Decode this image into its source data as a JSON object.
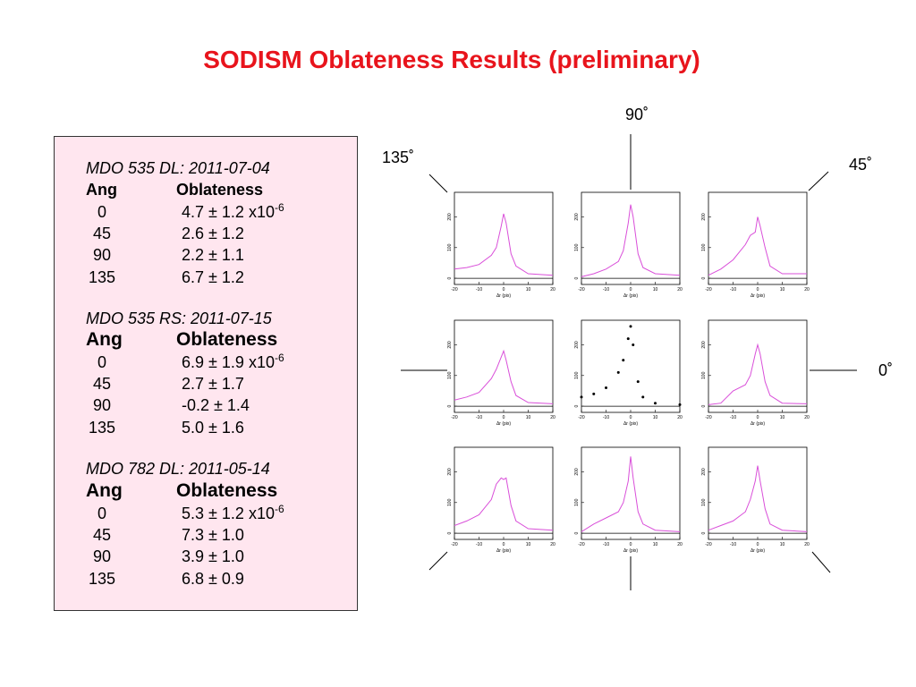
{
  "title": "SODISM Oblateness Results (preliminary)",
  "panel": {
    "blocks": [
      {
        "heading": "MDO 535 DL: 2011-07-04",
        "col_headers": [
          "Ang",
          "Oblateness"
        ],
        "rows": [
          {
            "ang": "0",
            "value": "4.7 ± 1.2",
            "unit": "x10",
            "exp": "-6"
          },
          {
            "ang": "45",
            "value": "2.6 ± 1.2"
          },
          {
            "ang": "90",
            "value": "2.2 ± 1.1"
          },
          {
            "ang": "135",
            "value": "6.7 ± 1.2"
          }
        ]
      },
      {
        "heading": "MDO 535 RS: 2011-07-15",
        "col_headers": [
          "Ang",
          "Oblateness"
        ],
        "rows": [
          {
            "ang": "0",
            "value": "6.9 ± 1.9",
            "unit": "x10",
            "exp": "-6"
          },
          {
            "ang": "45",
            "value": "2.7 ± 1.7"
          },
          {
            "ang": "90",
            "value": "-0.2 ± 1.4"
          },
          {
            "ang": "135",
            "value": "5.0 ± 1.6"
          }
        ]
      },
      {
        "heading": "MDO 782 DL: 2011-05-14",
        "col_headers": [
          "Ang",
          "Oblateness"
        ],
        "rows": [
          {
            "ang": "0",
            "value": "5.3 ± 1.2",
            "unit": "x10",
            "exp": "-6"
          },
          {
            "ang": "45",
            "value": "7.3 ± 1.0"
          },
          {
            "ang": "90",
            "value": "3.9 ± 1.0"
          },
          {
            "ang": "135",
            "value": "6.8 ± 0.9"
          }
        ]
      }
    ]
  },
  "angle_labels": [
    "90˚",
    "135˚",
    "45˚",
    "0˚"
  ],
  "chart_data": [
    {
      "type": "line",
      "x": [
        -20,
        -15,
        -10,
        -5,
        -3,
        -1,
        0,
        1,
        3,
        5,
        10,
        20
      ],
      "values": [
        30,
        35,
        45,
        75,
        100,
        170,
        210,
        180,
        80,
        40,
        15,
        10
      ],
      "color": "#d94fd9",
      "xlim": [
        -20,
        20
      ],
      "ylim": [
        -20,
        280
      ],
      "xticks": [
        -20,
        -10,
        0,
        10,
        20
      ],
      "yticks": [
        0,
        100,
        200
      ],
      "xlabel": "Δr (pix)"
    },
    {
      "type": "line",
      "x": [
        -20,
        -15,
        -10,
        -5,
        -3,
        -1,
        0,
        1,
        3,
        5,
        10,
        20
      ],
      "values": [
        5,
        15,
        30,
        55,
        90,
        180,
        240,
        200,
        80,
        35,
        15,
        10
      ],
      "color": "#d94fd9",
      "xlim": [
        -20,
        20
      ],
      "ylim": [
        -20,
        280
      ],
      "xticks": [
        -20,
        -10,
        0,
        10,
        20
      ],
      "yticks": [
        0,
        100,
        200
      ],
      "xlabel": "Δr (pix)"
    },
    {
      "type": "line",
      "x": [
        -20,
        -15,
        -10,
        -5,
        -3,
        -1,
        0,
        1,
        3,
        5,
        10,
        20
      ],
      "values": [
        10,
        30,
        60,
        110,
        140,
        150,
        200,
        170,
        100,
        40,
        15,
        15
      ],
      "color": "#d94fd9",
      "xlim": [
        -20,
        20
      ],
      "ylim": [
        -20,
        280
      ],
      "xticks": [
        -20,
        -10,
        0,
        10,
        20
      ],
      "yticks": [
        0,
        100,
        200
      ],
      "xlabel": "Δr (pix)"
    },
    {
      "type": "line",
      "x": [
        -20,
        -15,
        -10,
        -5,
        -3,
        -1,
        0,
        1,
        3,
        5,
        10,
        20
      ],
      "values": [
        20,
        30,
        45,
        90,
        120,
        160,
        180,
        150,
        80,
        35,
        12,
        8
      ],
      "color": "#d94fd9",
      "xlim": [
        -20,
        20
      ],
      "ylim": [
        -20,
        280
      ],
      "xticks": [
        -20,
        -10,
        0,
        10,
        20
      ],
      "yticks": [
        0,
        100,
        200
      ],
      "xlabel": "Δr (pix)"
    },
    {
      "type": "scatter",
      "x": [
        -20,
        -15,
        -10,
        -5,
        -3,
        -1,
        0,
        1,
        3,
        5,
        10,
        20
      ],
      "values": [
        30,
        40,
        60,
        110,
        150,
        220,
        260,
        200,
        80,
        30,
        10,
        5
      ],
      "color": "#000000",
      "xlim": [
        -20,
        20
      ],
      "ylim": [
        -20,
        280
      ],
      "xticks": [
        -20,
        -10,
        0,
        10,
        20
      ],
      "yticks": [
        0,
        100,
        200
      ],
      "xlabel": "Δr (pix)"
    },
    {
      "type": "line",
      "x": [
        -20,
        -15,
        -10,
        -5,
        -3,
        -1,
        0,
        1,
        3,
        5,
        10,
        20
      ],
      "values": [
        5,
        10,
        50,
        70,
        100,
        170,
        200,
        170,
        80,
        35,
        10,
        8
      ],
      "color": "#d94fd9",
      "xlim": [
        -20,
        20
      ],
      "ylim": [
        -20,
        280
      ],
      "xticks": [
        -20,
        -10,
        0,
        10,
        20
      ],
      "yticks": [
        0,
        100,
        200
      ],
      "xlabel": "Δr (pix)"
    },
    {
      "type": "line",
      "x": [
        -20,
        -15,
        -10,
        -5,
        -3,
        -1,
        0,
        1,
        3,
        5,
        10,
        20
      ],
      "values": [
        25,
        40,
        60,
        110,
        160,
        180,
        175,
        180,
        90,
        40,
        15,
        10
      ],
      "color": "#d94fd9",
      "xlim": [
        -20,
        20
      ],
      "ylim": [
        -20,
        280
      ],
      "xticks": [
        -20,
        -10,
        0,
        10,
        20
      ],
      "yticks": [
        0,
        100,
        200
      ],
      "xlabel": "Δr (pix)"
    },
    {
      "type": "line",
      "x": [
        -20,
        -15,
        -10,
        -5,
        -3,
        -1,
        0,
        1,
        3,
        5,
        10,
        20
      ],
      "values": [
        5,
        30,
        50,
        70,
        100,
        170,
        250,
        180,
        70,
        30,
        10,
        5
      ],
      "color": "#d94fd9",
      "xlim": [
        -20,
        20
      ],
      "ylim": [
        -20,
        280
      ],
      "xticks": [
        -20,
        -10,
        0,
        10,
        20
      ],
      "yticks": [
        0,
        100,
        200
      ],
      "xlabel": "Δr (pix)"
    },
    {
      "type": "line",
      "x": [
        -20,
        -15,
        -10,
        -5,
        -3,
        -1,
        0,
        1,
        3,
        5,
        10,
        20
      ],
      "values": [
        10,
        25,
        40,
        70,
        110,
        170,
        220,
        170,
        80,
        30,
        10,
        5
      ],
      "color": "#d94fd9",
      "xlim": [
        -20,
        20
      ],
      "ylim": [
        -20,
        280
      ],
      "xticks": [
        -20,
        -10,
        0,
        10,
        20
      ],
      "yticks": [
        0,
        100,
        200
      ],
      "xlabel": "Δr (pix)"
    }
  ]
}
